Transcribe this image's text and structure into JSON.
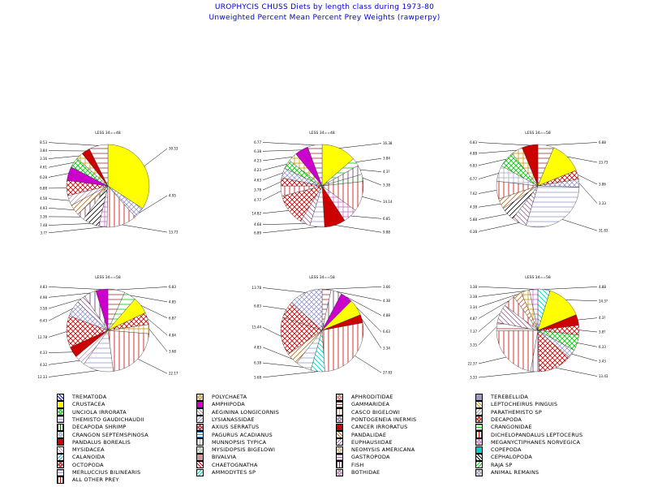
{
  "title": {
    "line1": "UROPHYCIS CHUSS Diets by length class during 1973-80",
    "line2": "Unweighted Percent Mean Percent Prey  Weights (rawperpy)"
  },
  "legend": [
    {
      "key": "TREMATODA",
      "label": "TREMATODA",
      "color": "#0000ff"
    },
    {
      "key": "CRUSTACEA",
      "label": "CRUSTACEA",
      "color": "#ffff00"
    },
    {
      "key": "UNCIOLA_IRRORATA",
      "label": "UNCIOLA  IRRORATA",
      "color": "#00cc00"
    },
    {
      "key": "THEMISTO_GAUDICHAUDII",
      "label": "THEMISTO  GAUDICHAUDII",
      "color": "#9999ff"
    },
    {
      "key": "DECAPODA_SHRIMP",
      "label": "DECAPODA  SHRIMP",
      "color": "#006600"
    },
    {
      "key": "CRANGON_SEPTEMSPINOSA",
      "label": "CRANGON  SEPTEMSPINOSA",
      "color": "#aaaacc"
    },
    {
      "key": "PANDALUS_BOREALIS",
      "label": "PANDALUS  BOREALIS",
      "color": "#cc0000"
    },
    {
      "key": "MYSIDACEA",
      "label": "MYSIDACEA",
      "color": "#bb99bb"
    },
    {
      "key": "CALANOIDA",
      "label": "CALANOIDA",
      "color": "#00cccc"
    },
    {
      "key": "OCTOPODA",
      "label": "OCTOPODA",
      "color": "#cc0000"
    },
    {
      "key": "MERLUCCIUS_BILINEARIS",
      "label": "MERLUCCIUS  BILINEARIS",
      "color": "#9999cc"
    },
    {
      "key": "ALL_OTHER_PREY",
      "label": "ALL  OTHER  PREY",
      "color": "#cc0000"
    },
    {
      "key": "POLYCHAETA",
      "label": "POLYCHAETA",
      "color": "#cc9900"
    },
    {
      "key": "AMPHIPODA",
      "label": "AMPHIPODA",
      "color": "#cc00cc"
    },
    {
      "key": "AEGININA_LONGICORNIS",
      "label": "AEGININA  LONGICORNIS",
      "color": "#999999"
    },
    {
      "key": "LYSIANASSIDAE",
      "label": "LYSIANASSIDAE",
      "color": "#9999cc"
    },
    {
      "key": "AXIUS_SERRATUS",
      "label": "AXIUS  SERRATUS",
      "color": "#cc0000"
    },
    {
      "key": "PAGURUS_ACADIANUS",
      "label": "PAGURUS  ACADIANUS",
      "color": "#0099cc"
    },
    {
      "key": "MUNNOPSIS_TYPICA",
      "label": "MUNNOPSIS  TYPICA",
      "color": "#999999"
    },
    {
      "key": "MYSIDOPSIS_BIGELOWI",
      "label": "MYSIDOPSIS  BIGELOWI",
      "color": "#99cc99"
    },
    {
      "key": "BIVALVIA",
      "label": "BIVALVIA",
      "color": "#cc9999"
    },
    {
      "key": "CHAETOGNATHA",
      "label": "CHAETOGNATHA",
      "color": "#cc0000"
    },
    {
      "key": "AMMODYTES_SP",
      "label": "AMMODYTES  SP",
      "color": "#00cccc"
    },
    {
      "key": "APHRODITIDAE",
      "label": "APHRODITIDAE",
      "color": "#cc6666"
    },
    {
      "key": "GAMMARIDEA",
      "label": "GAMMARIDEA",
      "color": "#993333"
    },
    {
      "key": "CASCO_BIGELOWI",
      "label": "CASCO  BIGELOWI",
      "color": "#ccaa88"
    },
    {
      "key": "PONTOGENEIA_INERMIS",
      "label": "PONTOGENEIA  INERMIS",
      "color": "#996699"
    },
    {
      "key": "CANCER_IRRORATUS",
      "label": "CANCER  IRRORATUS",
      "color": "#cc0000"
    },
    {
      "key": "PANDALIDAE",
      "label": "PANDALIDAE",
      "color": "#cc6600"
    },
    {
      "key": "EUPHAUSIIDAE",
      "label": "EUPHAUSIIDAE",
      "color": "#996699"
    },
    {
      "key": "NEOMYSIS_AMERICANA",
      "label": "NEOMYSIS  AMERICANA",
      "color": "#ccaa66"
    },
    {
      "key": "GASTROPODA",
      "label": "GASTROPODA",
      "color": "#996699"
    },
    {
      "key": "FISH",
      "label": "FISH",
      "color": "#663366"
    },
    {
      "key": "BOTHIDAE",
      "label": "BOTHIDAE",
      "color": "#cc66cc"
    },
    {
      "key": "TEREBELLIDA",
      "label": "TEREBELLIDA",
      "color": "#9999cc"
    },
    {
      "key": "LEPTOCHEIRUS_PINGUIS",
      "label": "LEPTOCHEIRUS  PINGUIS",
      "color": "#cc9900"
    },
    {
      "key": "PARATHEMISTO_SP",
      "label": "PARATHEMISTO  SP",
      "color": "#999999"
    },
    {
      "key": "DECAPODA",
      "label": "DECAPODA",
      "color": "#cc0000"
    },
    {
      "key": "CRANGONIDAE",
      "label": "CRANGONIDAE",
      "color": "#00cc00"
    },
    {
      "key": "DICHELOPANDALUS_LEPTOCERUS",
      "label": "DICHELOPANDALUS  LEPTOCERUS",
      "color": "#cc0000"
    },
    {
      "key": "MEGANYCTIPHANES_NORVEGICA",
      "label": "MEGANYCTIPHANES  NORVEGICA",
      "color": "#cc66cc"
    },
    {
      "key": "COPEPODA",
      "label": "COPEPODA",
      "color": "#00cccc"
    },
    {
      "key": "CEPHALOPODA",
      "label": "CEPHALOPODA",
      "color": "#000000"
    },
    {
      "key": "RAJA_SP",
      "label": "RAJA  SP",
      "color": "#00cc00"
    },
    {
      "key": "ANIMAL_REMAINS",
      "label": "ANIMAL  REMAINS",
      "color": "#9999cc"
    }
  ],
  "chart_data": [
    {
      "type": "pie",
      "title": "LESS 34==48",
      "slices": [
        {
          "key": "CRUSTACEA",
          "value": 39.53
        },
        {
          "key": "ANIMAL_REMAINS",
          "value": 4.95
        },
        {
          "key": "ALL_OTHER_PREY",
          "value": 13.73
        },
        {
          "key": "BOTHIDAE",
          "value": 3.71
        },
        {
          "key": "CEPHALOPODA",
          "value": 7.48
        },
        {
          "key": "FISH",
          "value": 3.36
        },
        {
          "key": "PANDALIDAE",
          "value": 4.93
        },
        {
          "key": "MYSIDACEA",
          "value": 4.58
        },
        {
          "key": "DECAPODA",
          "value": 6.88
        },
        {
          "key": "AMPHIPODA",
          "value": 6.28
        },
        {
          "key": "UNCIOLA_IRRORATA",
          "value": 4.61
        },
        {
          "key": "POLYCHAETA",
          "value": 3.16
        },
        {
          "key": "CANCER_IRRORATUS",
          "value": 3.84
        },
        {
          "key": "GAMMARIDEA",
          "value": 8.53
        }
      ],
      "labels_shown": [
        "39.53",
        "4.95",
        "13.73",
        "3.7?",
        "7.48",
        "3.36",
        "4.93",
        "4.58",
        "6.88",
        "6.28",
        "4.61",
        "3.16",
        "3.84",
        "8.53"
      ]
    },
    {
      "type": "pie",
      "title": "LESS 34==48",
      "slices": [
        {
          "key": "CRUSTACEA",
          "value": 16.38
        },
        {
          "key": "CRANGONIDAE",
          "value": 3.84
        },
        {
          "key": "FISH",
          "value": 4.37
        },
        {
          "key": "DECAPODA_SHRIMP",
          "value": 3.38
        },
        {
          "key": "ALL_OTHER_PREY",
          "value": 14.14
        },
        {
          "key": "BOTHIDAE",
          "value": 6.85
        },
        {
          "key": "CANCER_IRRORATUS",
          "value": 9.88
        },
        {
          "key": "MERLUCCIUS_BILINEARIS",
          "value": 6.89
        },
        {
          "key": "EUPHAUSIIDAE",
          "value": 4.68
        },
        {
          "key": "AXIUS_SERRATUS",
          "value": 14.82
        },
        {
          "key": "DICHELOPANDALUS_LEPTOCERUS",
          "value": 4.77
        },
        {
          "key": "DECAPODA",
          "value": 3.78
        },
        {
          "key": "ANIMAL_REMAINS",
          "value": 4.63
        },
        {
          "key": "UNCIOLA_IRRORATA",
          "value": 4.23
        },
        {
          "key": "POLYCHAETA",
          "value": 4.23
        },
        {
          "key": "AMPHIPODA",
          "value": 6.38
        },
        {
          "key": "GAMMARIDEA",
          "value": 6.77
        }
      ],
      "labels_shown": [
        "16.38",
        "3.84",
        "4.3?",
        "3.38",
        "14.14",
        "6.85",
        "9.88",
        "6.89",
        "4.68",
        "14.82",
        "4.77",
        "3.78",
        "4.63",
        "4.23",
        "4.23",
        "6.38",
        "6.77"
      ]
    },
    {
      "type": "pie",
      "title": "LESS 34==58",
      "slices": [
        {
          "key": "GAMMARIDEA",
          "value": 6.88
        },
        {
          "key": "CRUSTACEA",
          "value": 13.73
        },
        {
          "key": "DECAPODA",
          "value": 3.86
        },
        {
          "key": "ANIMAL_REMAINS",
          "value": 3.33
        },
        {
          "key": "MERLUCCIUS_BILINEARIS",
          "value": 31.83
        },
        {
          "key": "EUPHAUSIIDAE",
          "value": 6.38
        },
        {
          "key": "CEPHALOPODA",
          "value": 5.88
        },
        {
          "key": "PANDALIDAE",
          "value": 4.38
        },
        {
          "key": "ALL_OTHER_PREY",
          "value": 7.62
        },
        {
          "key": "CRANGON_SEPTEMSPINOSA",
          "value": 6.77
        },
        {
          "key": "UNCIOLA_IRRORATA",
          "value": 6.83
        },
        {
          "key": "POLYCHAETA",
          "value": 4.88
        },
        {
          "key": "CANCER_IRRORATUS",
          "value": 6.83
        }
      ],
      "labels_shown": [
        "6.88",
        "13.73",
        "3.86",
        "3.33",
        "31.83",
        "6.38",
        "5.88",
        "4.38",
        "7.62",
        "6.77",
        "6.83",
        "4.88",
        "6.83"
      ]
    },
    {
      "type": "pie",
      "title": "LESS 34==58",
      "slices": [
        {
          "key": "GAMMARIDEA",
          "value": 6.83
        },
        {
          "key": "CRANGONIDAE",
          "value": 4.85
        },
        {
          "key": "CRUSTACEA",
          "value": 6.87
        },
        {
          "key": "DECAPODA",
          "value": 4.84
        },
        {
          "key": "POLYCHAETA",
          "value": 3.68
        },
        {
          "key": "ALL_OTHER_PREY",
          "value": 22.17
        },
        {
          "key": "MERLUCCIUS_BILINEARIS",
          "value": 12.33
        },
        {
          "key": "MYSIDACEA",
          "value": 4.32
        },
        {
          "key": "CANCER_IRRORATUS",
          "value": 4.33
        },
        {
          "key": "AXIUS_SERRATUS",
          "value": 12.78
        },
        {
          "key": "ANIMAL_REMAINS",
          "value": 6.43
        },
        {
          "key": "EUPHAUSIIDAE",
          "value": 3.58
        },
        {
          "key": "FISH",
          "value": 4.98
        },
        {
          "key": "AMPHIPODA",
          "value": 4.83
        }
      ],
      "labels_shown": [
        "6.83",
        "4.85",
        "6.87",
        "4.84",
        "3.68",
        "22.17",
        "12.33",
        "4.32",
        "4.33",
        "12.78",
        "6.43",
        "3.58",
        "4.98",
        "4.83"
      ]
    },
    {
      "type": "pie",
      "title": "LESS 34==58",
      "slices": [
        {
          "key": "GAMMARIDEA",
          "value": 3.66
        },
        {
          "key": "FISH",
          "value": 4.38
        },
        {
          "key": "AMPHIPODA",
          "value": 4.88
        },
        {
          "key": "CRUSTACEA",
          "value": 6.63
        },
        {
          "key": "CANCER_IRRORATUS",
          "value": 3.34
        },
        {
          "key": "ALL_OTHER_PREY",
          "value": 27.83
        },
        {
          "key": "CALANOIDA",
          "value": 5.68
        },
        {
          "key": "MERLUCCIUS_BILINEARIS",
          "value": 6.38
        },
        {
          "key": "PANDALIDAE",
          "value": 4.83
        },
        {
          "key": "AXIUS_SERRATUS",
          "value": 15.44
        },
        {
          "key": "DECAPODA",
          "value": 6.83
        },
        {
          "key": "ANIMAL_REMAINS",
          "value": 13.78
        }
      ],
      "labels_shown": [
        "3.66",
        "4.38",
        "4.88",
        "6.63",
        "3.34",
        "27.83",
        "5.68",
        "6.38",
        "4.83",
        "15.44",
        "6.83",
        "13.78"
      ]
    },
    {
      "type": "pie",
      "title": "LESS 34==58",
      "slices": [
        {
          "key": "CALANOIDA",
          "value": 4.88
        },
        {
          "key": "CRUSTACEA",
          "value": 14.3
        },
        {
          "key": "CANCER_IRRORATUS",
          "value": 4.3
        },
        {
          "key": "DECAPODA",
          "value": 3.8
        },
        {
          "key": "UNCIOLA_IRRORATA",
          "value": 6.33
        },
        {
          "key": "ANIMAL_REMAINS",
          "value": 3.43
        },
        {
          "key": "AXIUS_SERRATUS",
          "value": 13.43
        },
        {
          "key": "FISH",
          "value": 3.33
        },
        {
          "key": "ALL_OTHER_PREY",
          "value": 22.37
        },
        {
          "key": "GAMMARIDEA",
          "value": 3.35
        },
        {
          "key": "EUPHAUSIIDAE",
          "value": 7.37
        },
        {
          "key": "DICHELOPANDALUS_LEPTOCERUS",
          "value": 4.87
        },
        {
          "key": "PANDALIDAE",
          "value": 3.34
        },
        {
          "key": "POLYCHAETA",
          "value": 3.38
        },
        {
          "key": "BOTHIDAE",
          "value": 3.38
        }
      ],
      "labels_shown": [
        "4.88",
        "14.3?",
        "4.3?",
        "3.8?",
        "6.33",
        "3.43",
        "13.43",
        "3.33",
        "22.37",
        "3.35",
        "7.37",
        "4.87",
        "3.34",
        "3.38",
        "3.38"
      ]
    }
  ]
}
